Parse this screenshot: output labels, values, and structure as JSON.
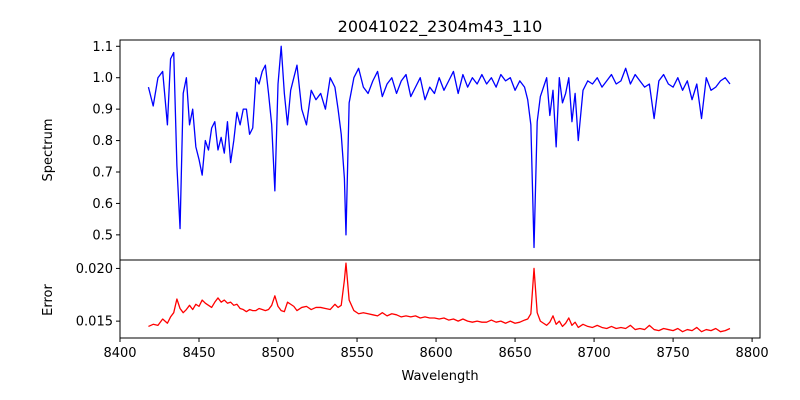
{
  "chart_data": [
    {
      "type": "line",
      "title": "20041022_2304m43_110",
      "xlabel": "",
      "ylabel": "Spectrum",
      "xlim": [
        8400,
        8805
      ],
      "ylim": [
        0.42,
        1.12
      ],
      "yticks": [
        0.5,
        0.6,
        0.7,
        0.8,
        0.9,
        1.0,
        1.1
      ],
      "ytick_labels": [
        "0.5",
        "0.6",
        "0.7",
        "0.8",
        "0.9",
        "1.0",
        "1.1"
      ],
      "grid": false,
      "series": [
        {
          "color": "#0000ff",
          "x": [
            8418,
            8421,
            8424,
            8427,
            8430,
            8432,
            8434,
            8436,
            8438,
            8440,
            8442,
            8444,
            8446,
            8448,
            8450,
            8452,
            8454,
            8456,
            8458,
            8460,
            8462,
            8464,
            8466,
            8468,
            8470,
            8472,
            8474,
            8476,
            8478,
            8480,
            8482,
            8484,
            8486,
            8488,
            8490,
            8492,
            8494,
            8496,
            8498,
            8500,
            8502,
            8504,
            8506,
            8508,
            8510,
            8512,
            8515,
            8518,
            8521,
            8524,
            8527,
            8530,
            8533,
            8536,
            8538,
            8540,
            8542,
            8543,
            8545,
            8548,
            8551,
            8554,
            8557,
            8560,
            8563,
            8566,
            8569,
            8572,
            8575,
            8578,
            8581,
            8584,
            8587,
            8590,
            8593,
            8596,
            8599,
            8602,
            8605,
            8608,
            8611,
            8614,
            8617,
            8620,
            8623,
            8626,
            8629,
            8632,
            8635,
            8638,
            8641,
            8644,
            8647,
            8650,
            8653,
            8656,
            8658,
            8660,
            8662,
            8664,
            8666,
            8668,
            8670,
            8672,
            8674,
            8676,
            8678,
            8680,
            8682,
            8684,
            8686,
            8688,
            8690,
            8693,
            8696,
            8699,
            8702,
            8705,
            8708,
            8711,
            8714,
            8717,
            8720,
            8723,
            8726,
            8729,
            8732,
            8735,
            8738,
            8741,
            8744,
            8747,
            8750,
            8753,
            8756,
            8759,
            8762,
            8765,
            8768,
            8771,
            8774,
            8777,
            8780,
            8783,
            8786
          ],
          "y": [
            0.97,
            0.91,
            1.0,
            1.02,
            0.85,
            1.06,
            1.08,
            0.72,
            0.52,
            0.95,
            1.0,
            0.85,
            0.9,
            0.78,
            0.74,
            0.69,
            0.8,
            0.77,
            0.84,
            0.86,
            0.77,
            0.81,
            0.76,
            0.86,
            0.73,
            0.8,
            0.89,
            0.85,
            0.9,
            0.9,
            0.82,
            0.84,
            1.0,
            0.98,
            1.02,
            1.04,
            0.95,
            0.85,
            0.64,
            0.98,
            1.1,
            0.95,
            0.85,
            0.96,
            1.0,
            1.04,
            0.9,
            0.85,
            0.96,
            0.93,
            0.95,
            0.9,
            1.0,
            0.97,
            0.9,
            0.82,
            0.68,
            0.5,
            0.92,
            1.0,
            1.03,
            0.97,
            0.95,
            0.99,
            1.02,
            0.94,
            0.98,
            1.0,
            0.95,
            0.99,
            1.01,
            0.94,
            0.97,
            1.0,
            0.93,
            0.97,
            0.95,
            1.0,
            0.96,
            0.99,
            1.02,
            0.95,
            1.01,
            0.97,
            1.0,
            0.98,
            1.01,
            0.98,
            1.0,
            0.97,
            1.01,
            0.99,
            1.0,
            0.96,
            0.99,
            0.97,
            0.93,
            0.85,
            0.46,
            0.86,
            0.94,
            0.97,
            1.0,
            0.88,
            0.96,
            0.78,
            1.0,
            0.92,
            0.95,
            1.0,
            0.86,
            0.95,
            0.8,
            0.96,
            0.99,
            0.98,
            1.0,
            0.97,
            0.99,
            1.01,
            0.98,
            0.99,
            1.03,
            0.98,
            1.01,
            0.99,
            0.97,
            0.98,
            0.87,
            0.99,
            1.01,
            0.98,
            0.97,
            1.0,
            0.96,
            0.99,
            0.93,
            0.98,
            0.87,
            1.0,
            0.96,
            0.97,
            0.99,
            1.0,
            0.98
          ]
        }
      ]
    },
    {
      "type": "line",
      "title": "",
      "xlabel": "Wavelength",
      "ylabel": "Error",
      "xlim": [
        8400,
        8805
      ],
      "ylim": [
        0.0134,
        0.0208
      ],
      "xticks": [
        8400,
        8450,
        8500,
        8550,
        8600,
        8650,
        8700,
        8750,
        8800
      ],
      "xtick_labels": [
        "8400",
        "8450",
        "8500",
        "8550",
        "8600",
        "8650",
        "8700",
        "8750",
        "8800"
      ],
      "yticks": [
        0.015,
        0.02
      ],
      "ytick_labels": [
        "0.015",
        "0.020"
      ],
      "grid": false,
      "series": [
        {
          "color": "#ff0000",
          "x": [
            8418,
            8421,
            8424,
            8427,
            8430,
            8432,
            8434,
            8436,
            8438,
            8440,
            8442,
            8444,
            8446,
            8448,
            8450,
            8452,
            8454,
            8456,
            8458,
            8460,
            8462,
            8464,
            8466,
            8468,
            8470,
            8472,
            8474,
            8476,
            8478,
            8480,
            8482,
            8484,
            8486,
            8488,
            8490,
            8492,
            8494,
            8496,
            8498,
            8500,
            8502,
            8504,
            8506,
            8508,
            8510,
            8512,
            8515,
            8518,
            8521,
            8524,
            8527,
            8530,
            8533,
            8536,
            8538,
            8540,
            8542,
            8543,
            8545,
            8548,
            8551,
            8554,
            8557,
            8560,
            8563,
            8566,
            8569,
            8572,
            8575,
            8578,
            8581,
            8584,
            8587,
            8590,
            8593,
            8596,
            8599,
            8602,
            8605,
            8608,
            8611,
            8614,
            8617,
            8620,
            8623,
            8626,
            8629,
            8632,
            8635,
            8638,
            8641,
            8644,
            8647,
            8650,
            8653,
            8656,
            8658,
            8660,
            8662,
            8664,
            8666,
            8668,
            8670,
            8672,
            8674,
            8676,
            8678,
            8680,
            8682,
            8684,
            8686,
            8688,
            8690,
            8693,
            8696,
            8699,
            8702,
            8705,
            8708,
            8711,
            8714,
            8717,
            8720,
            8723,
            8726,
            8729,
            8732,
            8735,
            8738,
            8741,
            8744,
            8747,
            8750,
            8753,
            8756,
            8759,
            8762,
            8765,
            8768,
            8771,
            8774,
            8777,
            8780,
            8783,
            8786
          ],
          "y": [
            0.0145,
            0.0147,
            0.0146,
            0.0152,
            0.0148,
            0.0154,
            0.0158,
            0.0171,
            0.0162,
            0.0158,
            0.0161,
            0.0165,
            0.0161,
            0.0166,
            0.0164,
            0.017,
            0.0167,
            0.0165,
            0.0163,
            0.0168,
            0.0172,
            0.0168,
            0.017,
            0.0167,
            0.0168,
            0.0165,
            0.0166,
            0.0162,
            0.0161,
            0.0159,
            0.0161,
            0.016,
            0.016,
            0.0162,
            0.0161,
            0.016,
            0.0161,
            0.0165,
            0.0174,
            0.0164,
            0.016,
            0.0159,
            0.0168,
            0.0166,
            0.0164,
            0.016,
            0.0163,
            0.0164,
            0.0161,
            0.0163,
            0.0163,
            0.0162,
            0.0161,
            0.0166,
            0.0163,
            0.0165,
            0.0189,
            0.0205,
            0.017,
            0.016,
            0.0157,
            0.0158,
            0.0157,
            0.0156,
            0.0155,
            0.0158,
            0.0155,
            0.0157,
            0.0156,
            0.0154,
            0.0155,
            0.0154,
            0.0155,
            0.0153,
            0.0154,
            0.0153,
            0.0153,
            0.0152,
            0.0153,
            0.0151,
            0.0152,
            0.015,
            0.0152,
            0.015,
            0.0149,
            0.015,
            0.0149,
            0.0149,
            0.0151,
            0.0149,
            0.015,
            0.0148,
            0.015,
            0.0148,
            0.0149,
            0.0151,
            0.0152,
            0.0157,
            0.02,
            0.0158,
            0.015,
            0.0148,
            0.0146,
            0.0149,
            0.0155,
            0.0147,
            0.015,
            0.0145,
            0.0148,
            0.0153,
            0.0146,
            0.0149,
            0.0144,
            0.0147,
            0.0145,
            0.0144,
            0.0146,
            0.0144,
            0.0143,
            0.0145,
            0.0143,
            0.0144,
            0.0143,
            0.0146,
            0.0142,
            0.0143,
            0.0142,
            0.0146,
            0.0142,
            0.0141,
            0.0143,
            0.0142,
            0.0141,
            0.0143,
            0.014,
            0.0142,
            0.0141,
            0.0144,
            0.014,
            0.0142,
            0.0141,
            0.0143,
            0.014,
            0.0141,
            0.0143
          ]
        }
      ]
    }
  ]
}
